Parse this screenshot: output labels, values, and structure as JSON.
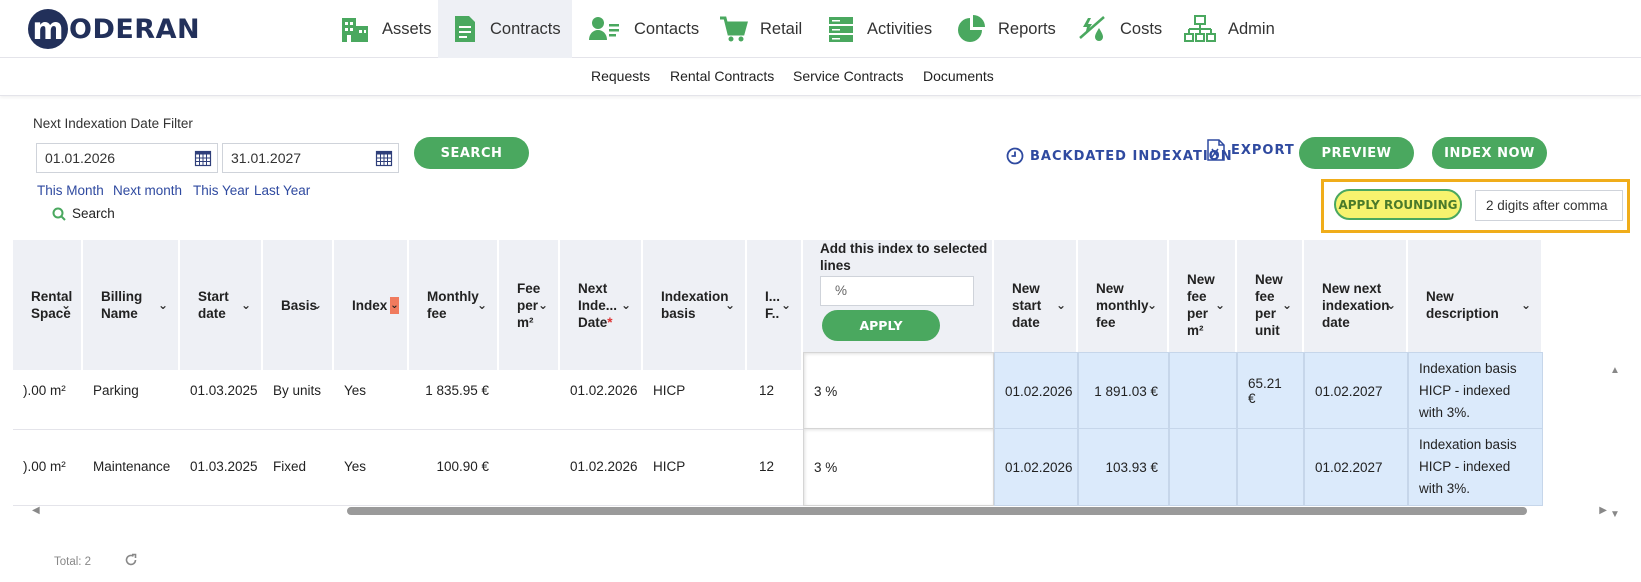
{
  "brand": {
    "logo_letter": "m",
    "logo_text": "ODERAN"
  },
  "nav": [
    {
      "label": "Assets",
      "icon": "building-icon"
    },
    {
      "label": "Contracts",
      "icon": "document-icon"
    },
    {
      "label": "Contacts",
      "icon": "person-card-icon"
    },
    {
      "label": "Retail",
      "icon": "cart-icon"
    },
    {
      "label": "Activities",
      "icon": "server-icon"
    },
    {
      "label": "Reports",
      "icon": "pie-chart-icon"
    },
    {
      "label": "Costs",
      "icon": "costs-icon"
    },
    {
      "label": "Admin",
      "icon": "org-chart-icon"
    }
  ],
  "subnav": [
    "Requests",
    "Rental Contracts",
    "Service Contracts",
    "Documents"
  ],
  "filter": {
    "label": "Next Indexation Date Filter",
    "date_from": "01.01.2026",
    "date_to": "31.01.2027",
    "search_button": "SEARCH",
    "quick_links": [
      "This Month",
      "Next month",
      "This Year",
      "Last Year"
    ],
    "search_link": "Search"
  },
  "actions": {
    "backdated": "BACKDATED INDEXATION",
    "export": "EXPORT",
    "preview": "PREVIEW",
    "index_now": "INDEX NOW",
    "apply_rounding": "APPLY ROUNDING",
    "rounding_value": "2 digits after comma"
  },
  "table": {
    "headers": {
      "rental_space": [
        "Rental",
        "Space"
      ],
      "billing_name": [
        "Billing",
        "Name"
      ],
      "start_date": [
        "Start",
        "date"
      ],
      "basis": "Basis",
      "index": "Index",
      "monthly_fee": [
        "Monthly",
        "fee"
      ],
      "fee_per_m2": [
        "Fee",
        "per",
        "m²"
      ],
      "next_index_date": [
        "Next",
        "Inde...",
        "Date"
      ],
      "indexation_basis": [
        "Indexation",
        "basis"
      ],
      "i_f": [
        "I...",
        "F.."
      ],
      "add_index": [
        "Add this index to selected",
        "lines"
      ],
      "add_index_placeholder": "%",
      "apply": "APPLY",
      "new_start_date": [
        "New",
        "start",
        "date"
      ],
      "new_monthly_fee": [
        "New",
        "monthly",
        "fee"
      ],
      "new_fee_per_m2": [
        "New",
        "fee",
        "per",
        "m²"
      ],
      "new_fee_per_unit": [
        "New",
        "fee",
        "per",
        "unit"
      ],
      "new_next_indexation_date": [
        "New next",
        "indexation",
        "date"
      ],
      "new_description": [
        "New",
        "description"
      ]
    },
    "rows": [
      {
        "rental_space": ").00 m²",
        "billing_name": "Parking",
        "start_date": "01.03.2025",
        "basis": "By units",
        "index": "Yes",
        "monthly_fee": "1 835.95 €",
        "fee_per_m2": "",
        "next_index_date": "01.02.2026",
        "indexation_basis": "HICP",
        "i_f": "12",
        "add_index": "3 %",
        "new_start_date": "01.02.2026",
        "new_monthly_fee": "1 891.03 €",
        "new_fee_per_m2": "",
        "new_fee_per_unit": "65.21 €",
        "new_next_indexation_date": "01.02.2027",
        "new_description": [
          "Indexation basis",
          "HICP - indexed",
          "with 3%."
        ]
      },
      {
        "rental_space": ").00 m²",
        "billing_name": "Maintenance",
        "start_date": "01.03.2025",
        "basis": "Fixed",
        "index": "Yes",
        "monthly_fee": "100.90 €",
        "fee_per_m2": "",
        "next_index_date": "01.02.2026",
        "indexation_basis": "HICP",
        "i_f": "12",
        "add_index": "3 %",
        "new_start_date": "01.02.2026",
        "new_monthly_fee": "103.93 €",
        "new_fee_per_m2": "",
        "new_fee_per_unit": "",
        "new_next_indexation_date": "01.02.2027",
        "new_description": [
          "Indexation basis",
          "HICP - indexed",
          "with 3%."
        ]
      }
    ]
  },
  "footer": {
    "total": "Total: 2"
  },
  "colors": {
    "accent_green": "#4aa85f",
    "link_blue": "#2f4aa0",
    "highlight": "#f0ad1a",
    "rounding_button": "#f7f36e",
    "new_values_bg": "#dbeafb"
  }
}
